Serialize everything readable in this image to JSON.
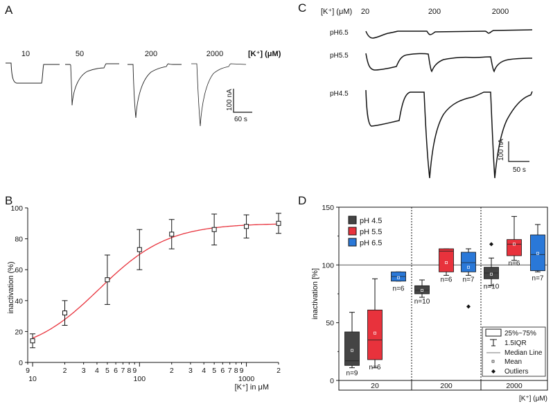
{
  "panel_a": {
    "letter": "A",
    "concentration_labels": [
      "10",
      "50",
      "200",
      "2000"
    ],
    "concentration_unit": "[K⁺] (μM)",
    "scale_current": "100 nA",
    "scale_time": "60 s"
  },
  "panel_b": {
    "letter": "B",
    "ylabel": "inactivation (%)",
    "xlabel": "[K⁺] in μM",
    "y_ticks": [
      "0",
      "20",
      "40",
      "60",
      "80",
      "100"
    ],
    "x_major_labels": [
      "10",
      "100",
      "1000"
    ],
    "x_minor_labels": [
      "9",
      "2",
      "3",
      "4",
      "5",
      "6",
      "7",
      "8",
      "9",
      "2",
      "3",
      "4",
      "5",
      "6",
      "7",
      "8",
      "9",
      "2"
    ]
  },
  "panel_c": {
    "letter": "C",
    "concentration_unit": "[K⁺] (μM)",
    "concentration_labels": [
      "20",
      "200",
      "2000"
    ],
    "rows": [
      "pH6.5",
      "pH5.5",
      "pH4.5"
    ],
    "scale_current": "100 nA",
    "scale_time": "50 s"
  },
  "panel_d": {
    "letter": "D",
    "ylabel": "inactivation [%]",
    "xlabel": "[K⁺] (μM)",
    "y_ticks": [
      "0",
      "50",
      "100",
      "150"
    ],
    "groups": [
      "20",
      "200",
      "2000"
    ],
    "legend_ph": [
      {
        "label": "pH 4.5",
        "color": "#444444"
      },
      {
        "label": "pH 5.5",
        "color": "#e8323c"
      },
      {
        "label": "pH 6.5",
        "color": "#2a78d8"
      }
    ],
    "legend_stats": [
      "25%~75%",
      "1.5IQR",
      "Median Line",
      "Mean",
      "Outliers"
    ]
  },
  "chart_data": [
    {
      "type": "scatter",
      "ylabel": "inactivation (%)",
      "xlabel": "[K⁺] in μM",
      "x_scale": "log",
      "xlim": [
        9,
        2000
      ],
      "ylim": [
        0,
        100
      ],
      "points": [
        {
          "x": 10,
          "y": 14,
          "err": 4.5
        },
        {
          "x": 20,
          "y": 32,
          "err": 8
        },
        {
          "x": 50,
          "y": 53.5,
          "err": 16
        },
        {
          "x": 100,
          "y": 73,
          "err": 13
        },
        {
          "x": 200,
          "y": 83,
          "err": 9.5
        },
        {
          "x": 500,
          "y": 86,
          "err": 10
        },
        {
          "x": 1000,
          "y": 88,
          "err": 7.5
        },
        {
          "x": 2000,
          "y": 90,
          "err": 6.5
        }
      ],
      "fit": {
        "bottom": 5,
        "top": 90,
        "ec50": 42,
        "hill": 1.35,
        "color": "#e8323c"
      },
      "grid": false
    },
    {
      "type": "box",
      "ylabel": "inactivation [%]",
      "xlabel": "[K⁺] (μM)",
      "ylim": [
        0,
        150
      ],
      "reference_line": 100,
      "categories": [
        "20",
        "200",
        "2000"
      ],
      "series": [
        {
          "name": "pH 4.5",
          "color": "#444444",
          "boxes": [
            {
              "q1": 13,
              "median": 17,
              "q3": 42,
              "whisker_low": 11,
              "whisker_high": 59,
              "mean": 26,
              "n": "n=9",
              "outliers": []
            },
            {
              "q1": 75,
              "median": 78,
              "q3": 82,
              "whisker_low": 72,
              "whisker_high": 87,
              "mean": 78,
              "n": "n=10",
              "outliers": []
            },
            {
              "q1": 88,
              "median": 93,
              "q3": 98,
              "whisker_low": 82,
              "whisker_high": 106,
              "mean": 92,
              "n": "n=10",
              "outliers": [
                118
              ]
            }
          ]
        },
        {
          "name": "pH 5.5",
          "color": "#e8323c",
          "boxes": [
            {
              "q1": 18,
              "median": 35,
              "q3": 61,
              "whisker_low": 11,
              "whisker_high": 88,
              "mean": 41,
              "n": "n=6",
              "outliers": []
            },
            {
              "q1": 94,
              "median": 112,
              "q3": 114,
              "whisker_low": 91,
              "whisker_high": 114,
              "mean": 102,
              "n": "n=6",
              "outliers": []
            },
            {
              "q1": 108,
              "median": 118,
              "q3": 122,
              "whisker_low": 104,
              "whisker_high": 142,
              "mean": 118,
              "n": "n=6",
              "outliers": []
            }
          ]
        },
        {
          "name": "pH 6.5",
          "color": "#2a78d8",
          "boxes": [
            {
              "q1": 86,
              "median": 90,
              "q3": 94,
              "whisker_low": 86,
              "whisker_high": 94,
              "mean": 89,
              "n": "n=6",
              "outliers": []
            },
            {
              "q1": 94,
              "median": 102,
              "q3": 111,
              "whisker_low": 91,
              "whisker_high": 114,
              "mean": 98,
              "n": "n=7",
              "outliers": [
                64
              ]
            },
            {
              "q1": 95,
              "median": 109,
              "q3": 126,
              "whisker_low": 94,
              "whisker_high": 135,
              "mean": 110,
              "n": "n=7",
              "outliers": []
            }
          ]
        }
      ]
    }
  ]
}
